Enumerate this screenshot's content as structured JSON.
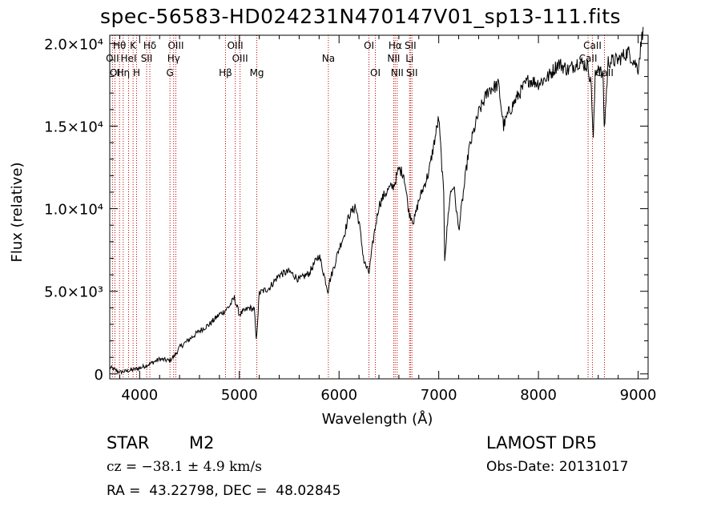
{
  "title": "spec-56583-HD024231N470147V01_sp13-111.fits",
  "info": {
    "object_class": "STAR",
    "subclass": "M2",
    "survey": "LAMOST DR5",
    "cz": "cz = −38.1 ± 4.9 km/s",
    "obs_date": "Obs-Date: 20131017",
    "coords": "RA =  43.22798, DEC =  48.02845"
  },
  "chart_data": {
    "type": "line",
    "title": "spec-56583-HD024231N470147V01_sp13-111.fits",
    "xlabel": "Wavelength (Å)",
    "ylabel": "Flux (relative)",
    "xlim": [
      3700,
      9100
    ],
    "ylim": [
      -300,
      20500
    ],
    "grid": false,
    "x_ticks": [
      4000,
      5000,
      6000,
      7000,
      8000,
      9000
    ],
    "y_ticks": [
      {
        "value": 0,
        "label": "0"
      },
      {
        "value": 5000,
        "label": "5.0×10³"
      },
      {
        "value": 10000,
        "label": "1.0×10⁴"
      },
      {
        "value": 15000,
        "label": "1.5×10⁴"
      },
      {
        "value": 20000,
        "label": "2.0×10⁴"
      }
    ],
    "series": [
      {
        "color": "#000000",
        "x": [
          3700,
          3800,
          3900,
          4000,
          4100,
          4200,
          4300,
          4350,
          4400,
          4500,
          4600,
          4700,
          4800,
          4850,
          4900,
          4950,
          5000,
          5050,
          5100,
          5150,
          5170,
          5200,
          5300,
          5400,
          5500,
          5600,
          5700,
          5800,
          5890,
          5900,
          5950,
          6000,
          6050,
          6100,
          6150,
          6160,
          6200,
          6250,
          6300,
          6350,
          6400,
          6450,
          6500,
          6550,
          6600,
          6650,
          6700,
          6750,
          6800,
          6900,
          7000,
          7050,
          7060,
          7100,
          7120,
          7150,
          7200,
          7300,
          7400,
          7500,
          7600,
          7650,
          7700,
          7800,
          7900,
          8000,
          8100,
          8200,
          8300,
          8400,
          8500,
          8530,
          8550,
          8570,
          8600,
          8650,
          8660,
          8700,
          8800,
          8900,
          9000,
          9050
        ],
        "values": [
          400,
          100,
          200,
          350,
          600,
          900,
          800,
          1100,
          1600,
          2100,
          2600,
          3000,
          3600,
          3800,
          4100,
          4600,
          3600,
          3800,
          4000,
          3900,
          2000,
          4900,
          5200,
          6000,
          6200,
          5700,
          6100,
          7200,
          5000,
          5500,
          6500,
          7600,
          8400,
          9600,
          10000,
          10200,
          9200,
          6800,
          6100,
          8400,
          10200,
          10800,
          11200,
          11400,
          12400,
          12100,
          9800,
          9200,
          10500,
          12200,
          15500,
          10800,
          7000,
          10000,
          11000,
          11400,
          8700,
          13500,
          15800,
          17200,
          17500,
          15000,
          15800,
          16900,
          17800,
          17600,
          18000,
          18800,
          18400,
          18900,
          18600,
          17400,
          14200,
          18000,
          18700,
          17800,
          14800,
          18900,
          19000,
          19500,
          18500,
          21000
        ]
      }
    ],
    "spectral_lines": [
      {
        "label": "Hθ",
        "wavelength": 3798,
        "row": 1
      },
      {
        "label": "OII",
        "wavelength": 3727,
        "row": 2
      },
      {
        "label": "OI",
        "wavelength": 3752,
        "row": 3
      },
      {
        "label": "Hη",
        "wavelength": 3835,
        "row": 3
      },
      {
        "label": "HeI",
        "wavelength": 3889,
        "row": 2
      },
      {
        "label": "K",
        "wavelength": 3934,
        "row": 1
      },
      {
        "label": "H",
        "wavelength": 3969,
        "row": 3
      },
      {
        "label": "SII",
        "wavelength": 4070,
        "row": 2
      },
      {
        "label": "Hδ",
        "wavelength": 4102,
        "row": 1
      },
      {
        "label": "G",
        "wavelength": 4304,
        "row": 3
      },
      {
        "label": "Hγ",
        "wavelength": 4341,
        "row": 2
      },
      {
        "label": "OIII",
        "wavelength": 4363,
        "row": 1
      },
      {
        "label": "Hβ",
        "wavelength": 4861,
        "row": 3
      },
      {
        "label": "OIII",
        "wavelength": 4959,
        "row": 1
      },
      {
        "label": "OIII",
        "wavelength": 5007,
        "row": 2
      },
      {
        "label": "Mg",
        "wavelength": 5175,
        "row": 3
      },
      {
        "label": "Na",
        "wavelength": 5893,
        "row": 2
      },
      {
        "label": "OI",
        "wavelength": 6300,
        "row": 1
      },
      {
        "label": "OI",
        "wavelength": 6364,
        "row": 3
      },
      {
        "label": "Hα",
        "wavelength": 6563,
        "row": 1
      },
      {
        "label": "NII",
        "wavelength": 6548,
        "row": 2
      },
      {
        "label": "NII",
        "wavelength": 6583,
        "row": 3
      },
      {
        "label": "SII",
        "wavelength": 6716,
        "row": 1
      },
      {
        "label": "Li",
        "wavelength": 6707,
        "row": 2
      },
      {
        "label": "SII",
        "wavelength": 6731,
        "row": 3
      },
      {
        "label": "CaII",
        "wavelength": 8542,
        "row": 1
      },
      {
        "label": "CaII",
        "wavelength": 8498,
        "row": 2
      },
      {
        "label": "CaII",
        "wavelength": 8662,
        "row": 3
      }
    ]
  }
}
